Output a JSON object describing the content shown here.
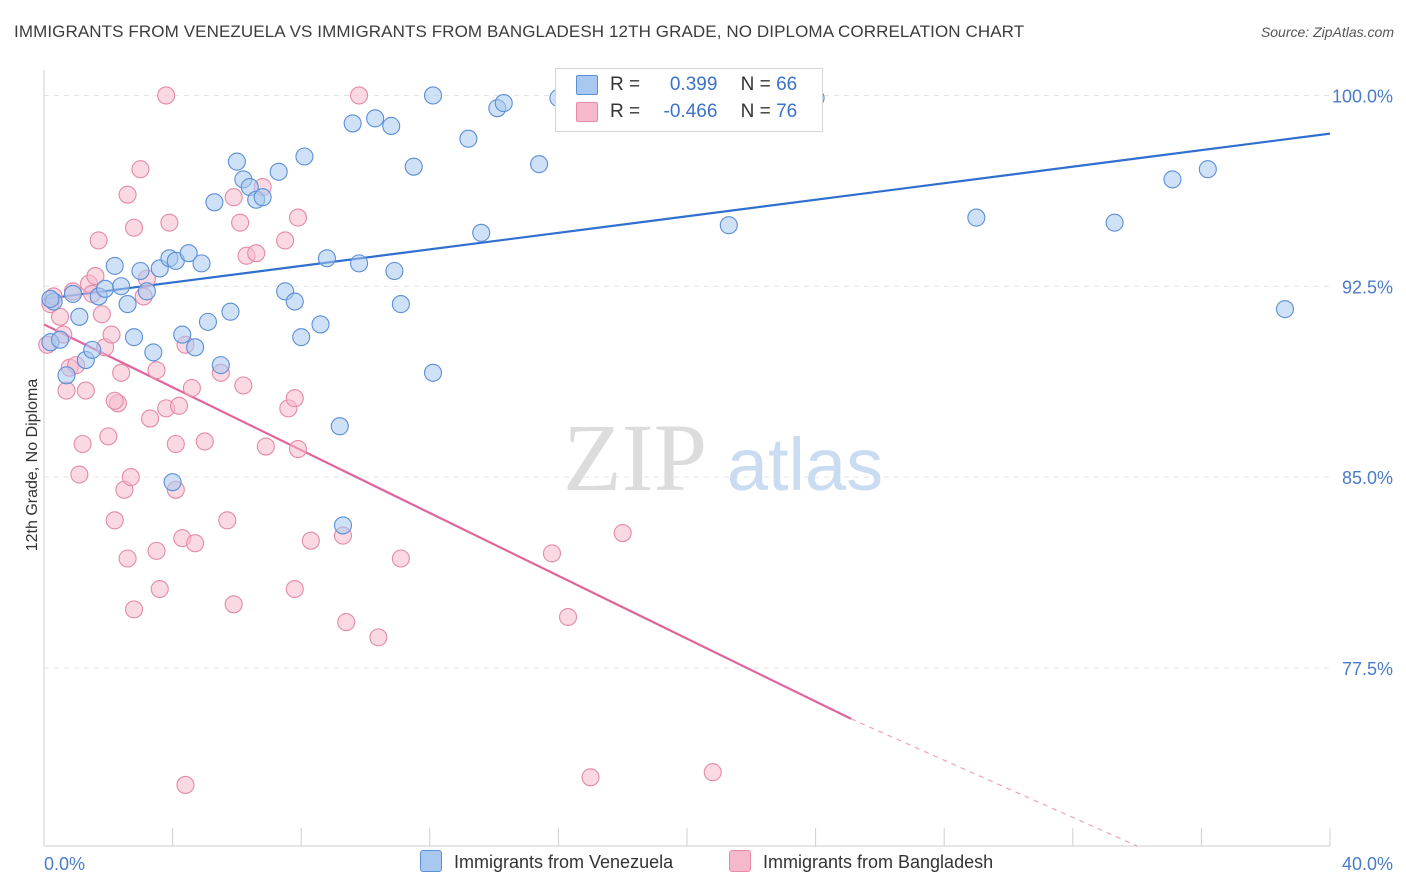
{
  "header": {
    "title": "IMMIGRANTS FROM VENEZUELA VS IMMIGRANTS FROM BANGLADESH 12TH GRADE, NO DIPLOMA CORRELATION CHART",
    "source": "Source: ZipAtlas.com"
  },
  "legend_top": {
    "rows": [
      {
        "r_label": "R =",
        "r_value": "0.399",
        "n_label": "N =",
        "n_value": "66"
      },
      {
        "r_label": "R =",
        "r_value": "-0.466",
        "n_label": "N =",
        "n_value": "76"
      }
    ]
  },
  "watermark": {
    "zip": "ZIP",
    "atlas": "atlas"
  },
  "colors": {
    "venezuela_fill": "#a8c8f0",
    "venezuela_stroke": "#5b8fd6",
    "venezuela_line": "#2f6fcf",
    "bangladesh_fill": "#f6b9cc",
    "bangladesh_stroke": "#e48aa8",
    "bangladesh_line": "#e0649a",
    "tick_label": "#4a7cc9"
  },
  "chart_data": {
    "type": "scatter",
    "title": "IMMIGRANTS FROM VENEZUELA VS IMMIGRANTS FROM BANGLADESH 12TH GRADE, NO DIPLOMA CORRELATION CHART",
    "xlabel": "",
    "ylabel": "12th Grade, No Diploma",
    "xlim": [
      0,
      40
    ],
    "ylim": [
      70.5,
      101.0
    ],
    "x_tick_labels": [
      "0.0%",
      "40.0%"
    ],
    "y_ticks": [
      100.0,
      92.5,
      85.0,
      77.5
    ],
    "y_tick_labels": [
      "100.0%",
      "92.5%",
      "85.0%",
      "77.5%"
    ],
    "grid": true,
    "legend_position": "top-center",
    "series": [
      {
        "name": "Immigrants from Venezuela",
        "r": 0.399,
        "n": 66,
        "trend": {
          "x": [
            0,
            40
          ],
          "y": [
            92.0,
            98.5
          ]
        },
        "points": [
          [
            0.2,
            90.3
          ],
          [
            0.3,
            91.9
          ],
          [
            0.5,
            90.4
          ],
          [
            0.7,
            89.0
          ],
          [
            0.9,
            92.2
          ],
          [
            1.1,
            91.3
          ],
          [
            1.3,
            89.6
          ],
          [
            1.5,
            90.0
          ],
          [
            1.7,
            92.1
          ],
          [
            1.9,
            92.4
          ],
          [
            2.2,
            93.3
          ],
          [
            2.4,
            92.5
          ],
          [
            2.6,
            91.8
          ],
          [
            2.8,
            90.5
          ],
          [
            3.0,
            93.1
          ],
          [
            3.2,
            92.3
          ],
          [
            3.4,
            89.9
          ],
          [
            3.6,
            93.2
          ],
          [
            3.9,
            93.6
          ],
          [
            4.1,
            93.5
          ],
          [
            4.3,
            90.6
          ],
          [
            4.5,
            93.8
          ],
          [
            4.7,
            90.1
          ],
          [
            4.9,
            93.4
          ],
          [
            5.1,
            91.1
          ],
          [
            5.3,
            95.8
          ],
          [
            5.5,
            89.4
          ],
          [
            5.8,
            91.5
          ],
          [
            6.0,
            97.4
          ],
          [
            6.2,
            96.7
          ],
          [
            6.4,
            96.4
          ],
          [
            6.6,
            95.9
          ],
          [
            6.8,
            96.0
          ],
          [
            7.3,
            97.0
          ],
          [
            7.5,
            92.3
          ],
          [
            7.8,
            91.9
          ],
          [
            8.0,
            90.5
          ],
          [
            8.1,
            97.6
          ],
          [
            8.6,
            91.0
          ],
          [
            8.8,
            93.6
          ],
          [
            9.2,
            87.0
          ],
          [
            9.3,
            83.1
          ],
          [
            9.8,
            93.4
          ],
          [
            9.6,
            98.9
          ],
          [
            10.3,
            99.1
          ],
          [
            10.8,
            98.8
          ],
          [
            10.9,
            93.1
          ],
          [
            11.1,
            91.8
          ],
          [
            11.5,
            97.2
          ],
          [
            12.1,
            100.0
          ],
          [
            13.2,
            98.3
          ],
          [
            13.6,
            94.6
          ],
          [
            14.1,
            99.5
          ],
          [
            14.3,
            99.7
          ],
          [
            15.4,
            97.3
          ],
          [
            16.0,
            99.9
          ],
          [
            4.0,
            84.8
          ],
          [
            12.1,
            89.1
          ],
          [
            21.3,
            94.9
          ],
          [
            24.0,
            99.9
          ],
          [
            29.0,
            95.2
          ],
          [
            33.3,
            95.0
          ],
          [
            35.1,
            96.7
          ],
          [
            36.2,
            97.1
          ],
          [
            38.6,
            91.6
          ],
          [
            0.2,
            92.0
          ]
        ]
      },
      {
        "name": "Immigrants from Bangladesh",
        "r": -0.466,
        "n": 76,
        "trend": {
          "x": [
            0,
            25.1
          ],
          "y": [
            91.0,
            75.5
          ]
        },
        "trend_dashed": {
          "x": [
            25.1,
            34.0
          ],
          "y": [
            75.5,
            70.5
          ]
        },
        "points": [
          [
            0.1,
            90.2
          ],
          [
            0.2,
            91.8
          ],
          [
            0.3,
            92.1
          ],
          [
            0.5,
            91.3
          ],
          [
            0.6,
            90.6
          ],
          [
            0.7,
            88.4
          ],
          [
            0.8,
            89.3
          ],
          [
            0.9,
            92.3
          ],
          [
            1.0,
            89.4
          ],
          [
            1.1,
            85.1
          ],
          [
            1.2,
            86.3
          ],
          [
            1.3,
            88.4
          ],
          [
            1.4,
            92.6
          ],
          [
            1.5,
            92.2
          ],
          [
            1.6,
            92.9
          ],
          [
            1.7,
            94.3
          ],
          [
            1.8,
            91.4
          ],
          [
            1.9,
            90.1
          ],
          [
            2.0,
            86.6
          ],
          [
            2.1,
            90.6
          ],
          [
            2.2,
            83.3
          ],
          [
            2.3,
            87.9
          ],
          [
            2.4,
            89.1
          ],
          [
            2.5,
            84.5
          ],
          [
            2.6,
            81.8
          ],
          [
            2.6,
            96.1
          ],
          [
            2.7,
            85.0
          ],
          [
            2.8,
            94.8
          ],
          [
            2.8,
            79.8
          ],
          [
            3.0,
            97.1
          ],
          [
            3.1,
            92.1
          ],
          [
            3.2,
            92.8
          ],
          [
            3.3,
            87.3
          ],
          [
            3.5,
            89.2
          ],
          [
            3.6,
            80.6
          ],
          [
            3.5,
            82.1
          ],
          [
            3.8,
            87.7
          ],
          [
            3.8,
            100.0
          ],
          [
            3.9,
            95.0
          ],
          [
            4.1,
            86.3
          ],
          [
            4.1,
            84.5
          ],
          [
            4.2,
            87.8
          ],
          [
            4.3,
            82.6
          ],
          [
            4.4,
            90.2
          ],
          [
            4.6,
            88.5
          ],
          [
            4.7,
            82.4
          ],
          [
            5.0,
            86.4
          ],
          [
            5.5,
            89.1
          ],
          [
            5.7,
            83.3
          ],
          [
            5.9,
            80.0
          ],
          [
            5.9,
            96.0
          ],
          [
            6.1,
            95.0
          ],
          [
            6.2,
            88.6
          ],
          [
            6.3,
            93.7
          ],
          [
            6.6,
            93.8
          ],
          [
            6.8,
            96.4
          ],
          [
            6.9,
            86.2
          ],
          [
            7.5,
            94.3
          ],
          [
            7.6,
            87.7
          ],
          [
            7.8,
            88.1
          ],
          [
            7.9,
            95.2
          ],
          [
            7.8,
            80.6
          ],
          [
            7.9,
            86.1
          ],
          [
            8.3,
            82.5
          ],
          [
            9.3,
            82.7
          ],
          [
            9.4,
            79.3
          ],
          [
            9.8,
            100.0
          ],
          [
            10.4,
            78.7
          ],
          [
            11.1,
            81.8
          ],
          [
            15.8,
            82.0
          ],
          [
            16.3,
            79.5
          ],
          [
            18.0,
            82.8
          ],
          [
            17.0,
            73.2
          ],
          [
            20.8,
            73.4
          ],
          [
            4.4,
            72.9
          ],
          [
            2.2,
            88.0
          ]
        ]
      }
    ]
  },
  "bottom_legend": [
    {
      "label": "Immigrants from Venezuela"
    },
    {
      "label": "Immigrants from Bangladesh"
    }
  ]
}
